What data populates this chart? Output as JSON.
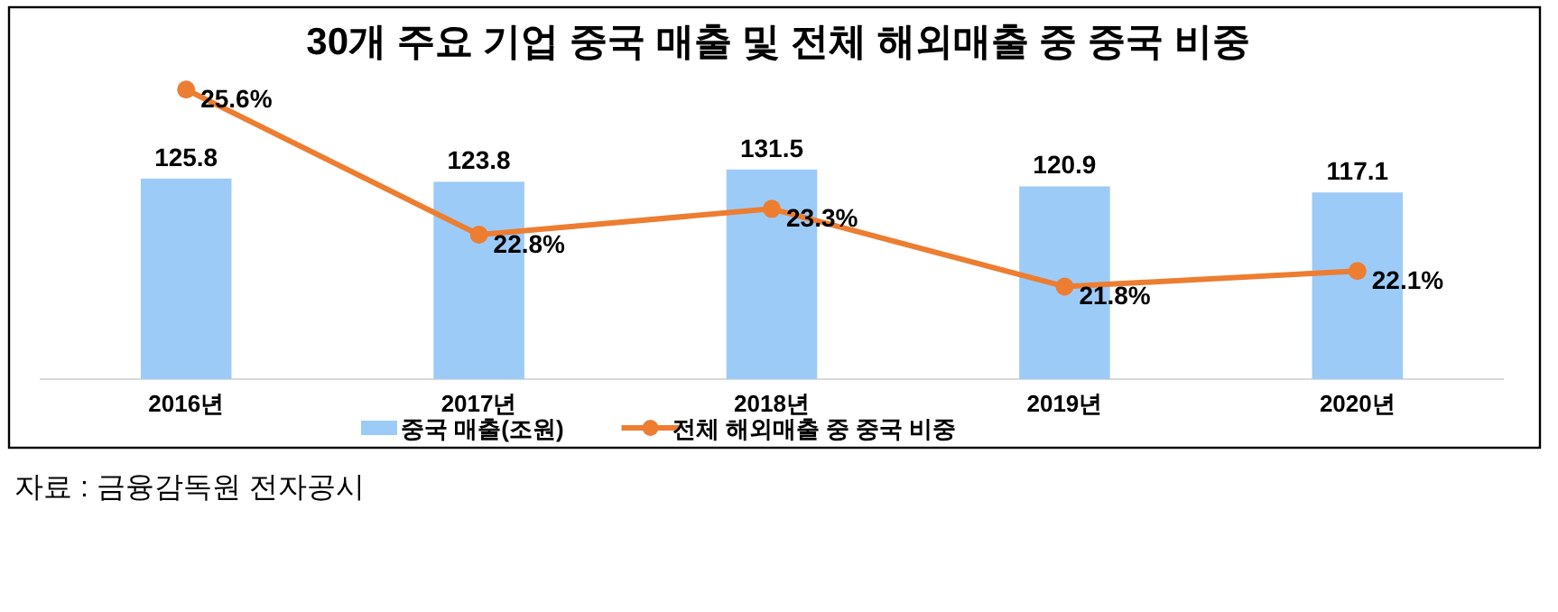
{
  "chart_data": {
    "type": "bar",
    "title": "30개 주요 기업 중국 매출 및 전체 해외매출 중 중국 비중",
    "categories": [
      "2016년",
      "2017년",
      "2018년",
      "2019년",
      "2020년"
    ],
    "series": [
      {
        "name": "중국 매출(조원)",
        "color": "#9dcbf7",
        "values": [
          125.8,
          123.8,
          131.5,
          120.9,
          117.1
        ],
        "value_labels": [
          "125.8",
          "123.8",
          "131.5",
          "120.9",
          "117.1"
        ]
      },
      {
        "name": "전체 해외매출 중 중국 비중",
        "type": "line",
        "axis": "y2",
        "color": "#ed7d31",
        "marker": "circle",
        "values": [
          25.6,
          22.8,
          23.3,
          21.8,
          22.1
        ],
        "value_labels": [
          "25.6%",
          "22.8%",
          "23.3%",
          "21.8%",
          "22.1%"
        ]
      }
    ],
    "tick_labels": "x",
    "legend": "bottom",
    "annotations": [
      "자료 : 금융감독원 전자공시"
    ]
  }
}
